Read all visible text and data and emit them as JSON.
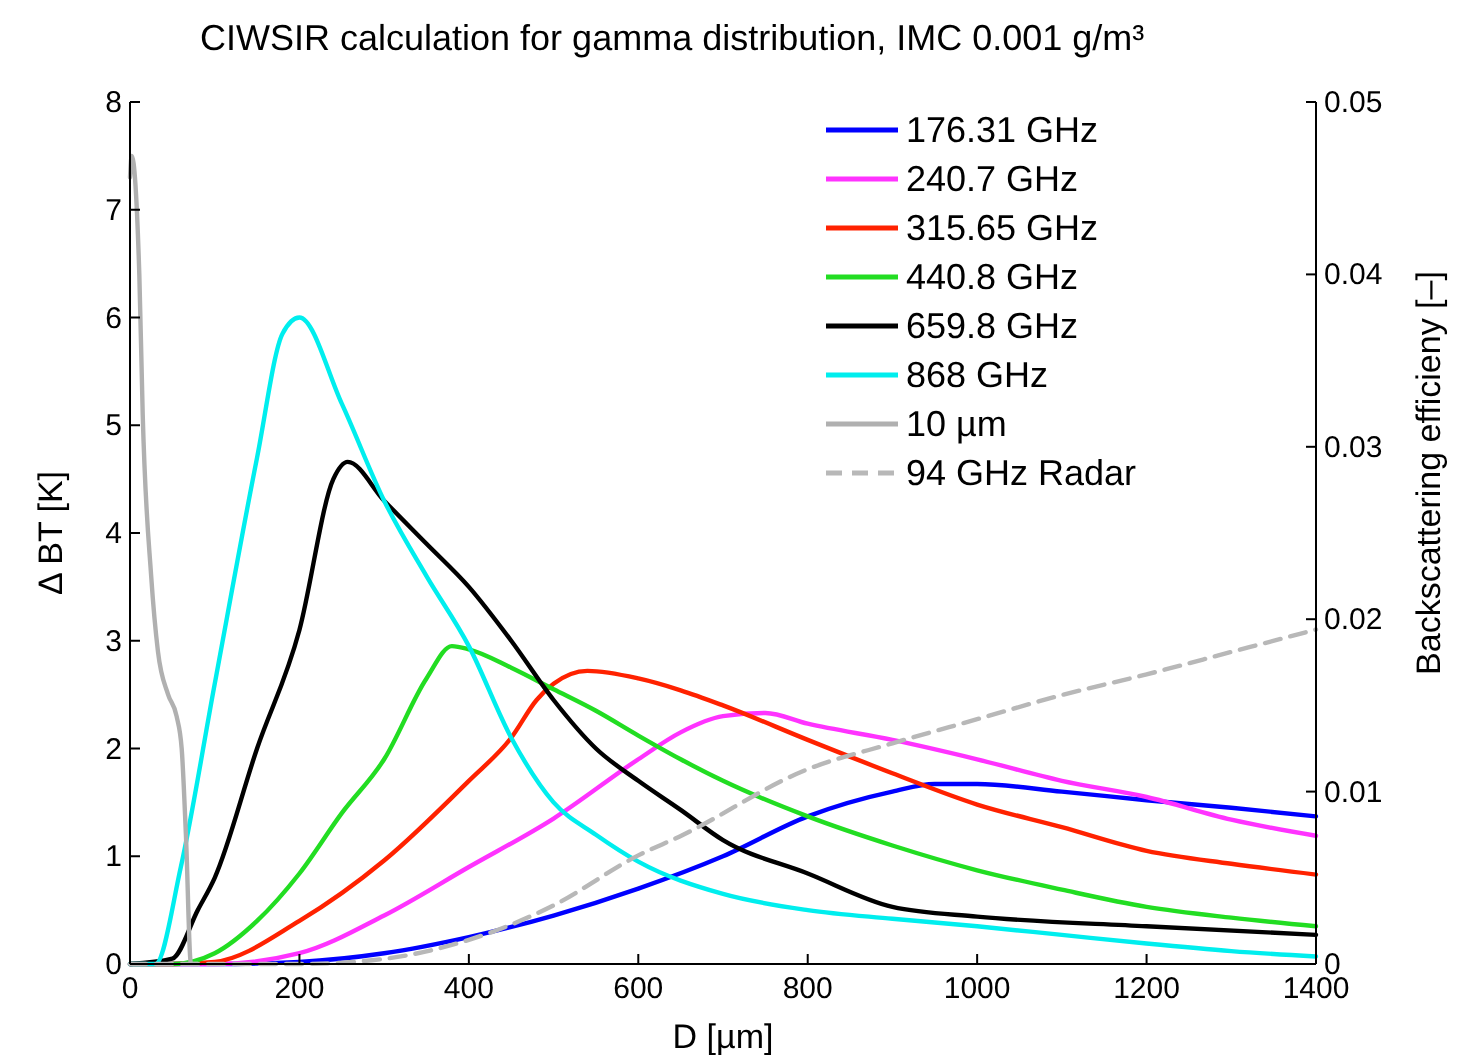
{
  "chart_data": {
    "type": "line",
    "title": "CIWSIR calculation for gamma distribution, IMC 0.001 g/m³",
    "xlabel": "D [µm]",
    "ylabel": "Δ BT [K]",
    "y2label": "Backscattering efficieny [–]",
    "xlim": [
      0,
      1400
    ],
    "xticks": [
      0,
      200,
      400,
      600,
      800,
      1000,
      1200,
      1400
    ],
    "ylim": [
      0,
      8
    ],
    "yticks": [
      0,
      1,
      2,
      3,
      4,
      5,
      6,
      7,
      8
    ],
    "y2lim": [
      0,
      0.05
    ],
    "y2ticks": [
      0,
      0.01,
      0.02,
      0.03,
      0.04,
      0.05
    ],
    "grid": false,
    "legend": "top right",
    "marker": "none",
    "series": [
      {
        "name": "176.31 GHz",
        "color": "#0000ff",
        "x": [
          0,
          100,
          200,
          300,
          400,
          500,
          600,
          700,
          800,
          900,
          950,
          1000,
          1100,
          1200,
          1300,
          1400
        ],
        "values": [
          0,
          0,
          0.02,
          0.1,
          0.25,
          0.45,
          0.7,
          1.0,
          1.37,
          1.6,
          1.67,
          1.67,
          1.6,
          1.52,
          1.45,
          1.37
        ]
      },
      {
        "name": "240.7 GHz",
        "color": "#ff33ff",
        "x": [
          0,
          100,
          200,
          300,
          400,
          500,
          600,
          650,
          700,
          750,
          800,
          900,
          1000,
          1100,
          1200,
          1300,
          1400
        ],
        "values": [
          0,
          0,
          0.1,
          0.45,
          0.9,
          1.35,
          1.9,
          2.15,
          2.3,
          2.33,
          2.23,
          2.08,
          1.9,
          1.7,
          1.55,
          1.34,
          1.19
        ]
      },
      {
        "name": "315.65 GHz",
        "color": "#ff2200",
        "x": [
          0,
          50,
          100,
          200,
          300,
          400,
          450,
          480,
          500,
          540,
          600,
          650,
          700,
          800,
          900,
          1000,
          1100,
          1200,
          1300,
          1400
        ],
        "values": [
          0,
          0,
          0.02,
          0.4,
          0.96,
          1.7,
          2.1,
          2.45,
          2.6,
          2.72,
          2.65,
          2.54,
          2.4,
          2.08,
          1.77,
          1.48,
          1.27,
          1.05,
          0.93,
          0.83
        ]
      },
      {
        "name": "440.8 GHz",
        "color": "#22dd22",
        "x": [
          0,
          50,
          100,
          150,
          200,
          250,
          300,
          350,
          380,
          400,
          450,
          500,
          550,
          600,
          650,
          700,
          800,
          900,
          1000,
          1100,
          1200,
          1300,
          1400
        ],
        "values": [
          0,
          0,
          0.1,
          0.4,
          0.84,
          1.4,
          1.9,
          2.65,
          2.95,
          2.92,
          2.75,
          2.55,
          2.35,
          2.12,
          1.9,
          1.7,
          1.37,
          1.1,
          0.87,
          0.69,
          0.53,
          0.43,
          0.35
        ]
      },
      {
        "name": "659.8 GHz",
        "color": "#000000",
        "x": [
          0,
          50,
          80,
          100,
          150,
          200,
          240,
          257,
          300,
          350,
          400,
          450,
          500,
          550,
          600,
          650,
          700,
          800,
          900,
          1000,
          1200,
          1400
        ],
        "values": [
          0,
          0.05,
          0.5,
          0.8,
          2.0,
          3.1,
          4.5,
          4.66,
          4.3,
          3.9,
          3.5,
          3.0,
          2.45,
          2.0,
          1.7,
          1.43,
          1.15,
          0.84,
          0.53,
          0.44,
          0.35,
          0.27
        ]
      },
      {
        "name": "868 GHz",
        "color": "#00eeee",
        "x": [
          0,
          30,
          60,
          100,
          150,
          180,
          200,
          250,
          300,
          350,
          400,
          450,
          500,
          550,
          600,
          700,
          800,
          900,
          1000,
          1100,
          1200,
          1300,
          1400
        ],
        "values": [
          0,
          0,
          0.9,
          2.6,
          4.7,
          5.85,
          6.0,
          5.2,
          4.3,
          3.6,
          2.95,
          2.1,
          1.5,
          1.2,
          0.95,
          0.65,
          0.5,
          0.42,
          0.35,
          0.27,
          0.19,
          0.12,
          0.07
        ]
      },
      {
        "name": "10 µm",
        "color": "#b0b0b0",
        "x": [
          0,
          2,
          11,
          15,
          25,
          33,
          45,
          55,
          61,
          66,
          72,
          80
        ],
        "values": [
          7.3,
          7.5,
          6.4,
          5.1,
          3.6,
          2.9,
          2.5,
          2.3,
          2.0,
          1.2,
          0,
          0
        ]
      },
      {
        "name": "94 GHz Radar",
        "color": "#b8b8b8",
        "axis": "y2",
        "line_style": "dashed",
        "x": [
          0,
          200,
          300,
          400,
          500,
          600,
          649,
          800,
          900,
          1000,
          1100,
          1200,
          1300,
          1400
        ],
        "values": [
          0,
          0,
          0.0003,
          0.0014,
          0.0034,
          0.0063,
          0.0074,
          0.0113,
          0.0128,
          0.0142,
          0.0156,
          0.0168,
          0.0181,
          0.0194
        ]
      }
    ]
  }
}
